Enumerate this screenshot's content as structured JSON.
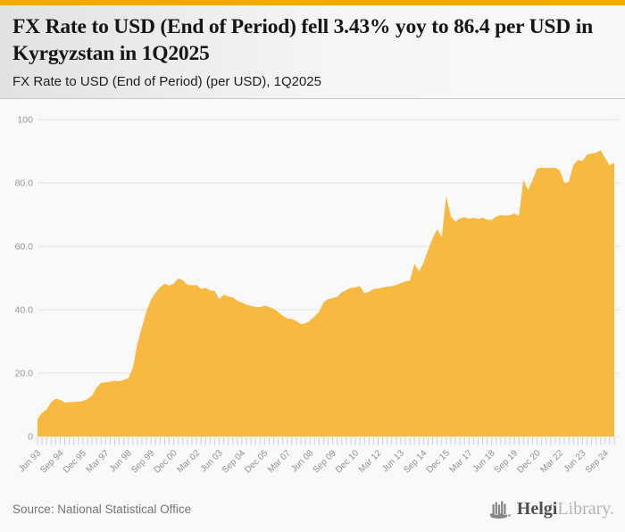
{
  "theme": {
    "accent_color": "#F5A800",
    "area_fill": "#F7B93F",
    "grid_color": "#e2e2e2",
    "tick_color": "#c9cfe8",
    "axis_label_color": "#979797"
  },
  "header": {
    "title": "FX Rate to USD (End of Period) fell 3.43% yoy to 86.4 per USD in Kyrgyzstan in 1Q2025",
    "subtitle": "FX Rate to USD (End of Period) (per USD), 1Q2025"
  },
  "footer": {
    "source": "Source: National Statistical Office",
    "brand_bold": "Helgi",
    "brand_light": "Library."
  },
  "chart_data": {
    "type": "area",
    "title": "FX Rate to USD (End of Period) (per USD), Kyrgyzstan, quarterly, Jun 1993 - Mar 2025",
    "ylim": [
      0,
      100
    ],
    "y_ticks": [
      0,
      20,
      40,
      60,
      80,
      100
    ],
    "y_tick_labels": [
      "0",
      "20.0",
      "40.0",
      "60.0",
      "80.0",
      "100"
    ],
    "grid": true,
    "legend": "none",
    "x_tick_every": 5,
    "x_tick_labels": [
      "Jun 93",
      "Sep 94",
      "Dec 95",
      "Mar 97",
      "Jun 98",
      "Sep 99",
      "Dec 00",
      "Mar 02",
      "Jun 03",
      "Sep 04",
      "Dec 05",
      "Mar 07",
      "Jun 08",
      "Sep 09",
      "Dec 10",
      "Mar 12",
      "Jun 13",
      "Sep 14",
      "Dec 15",
      "Mar 17",
      "Jun 18",
      "Sep 19",
      "Dec 20",
      "Mar 22",
      "Jun 23",
      "Sep 24"
    ],
    "values": [
      5.5,
      7.5,
      8.5,
      10.8,
      11.9,
      11.6,
      10.7,
      10.8,
      10.9,
      11.0,
      11.2,
      11.8,
      12.9,
      15.4,
      16.9,
      17.1,
      17.3,
      17.6,
      17.4,
      17.9,
      18.4,
      21.6,
      29.4,
      34.5,
      39.6,
      43.2,
      45.4,
      47.1,
      48.2,
      47.6,
      48.3,
      49.9,
      49.3,
      47.9,
      47.7,
      47.8,
      46.6,
      46.9,
      46.1,
      46.0,
      43.4,
      44.7,
      44.2,
      43.9,
      42.9,
      42.3,
      41.6,
      41.2,
      40.9,
      40.8,
      41.3,
      40.9,
      40.3,
      39.3,
      38.1,
      37.3,
      37.1,
      36.4,
      35.5,
      35.7,
      36.6,
      37.9,
      39.4,
      42.4,
      43.3,
      43.7,
      44.1,
      45.5,
      46.2,
      46.9,
      47.1,
      47.4,
      45.2,
      45.7,
      46.5,
      46.7,
      47.0,
      47.3,
      47.4,
      47.8,
      48.5,
      48.9,
      49.2,
      54.5,
      52.1,
      54.8,
      58.9,
      62.6,
      65.4,
      62.9,
      75.9,
      69.5,
      67.8,
      68.8,
      69.2,
      68.7,
      69.0,
      68.6,
      69.1,
      68.4,
      68.3,
      69.4,
      69.9,
      69.7,
      69.8,
      70.4,
      69.6,
      81.0,
      77.7,
      80.9,
      84.6,
      84.8,
      84.7,
      84.8,
      84.8,
      84.0,
      79.9,
      80.4,
      85.7,
      87.3,
      86.9,
      88.9,
      89.3,
      89.5,
      90.4,
      87.8,
      85.5,
      86.4
    ]
  }
}
